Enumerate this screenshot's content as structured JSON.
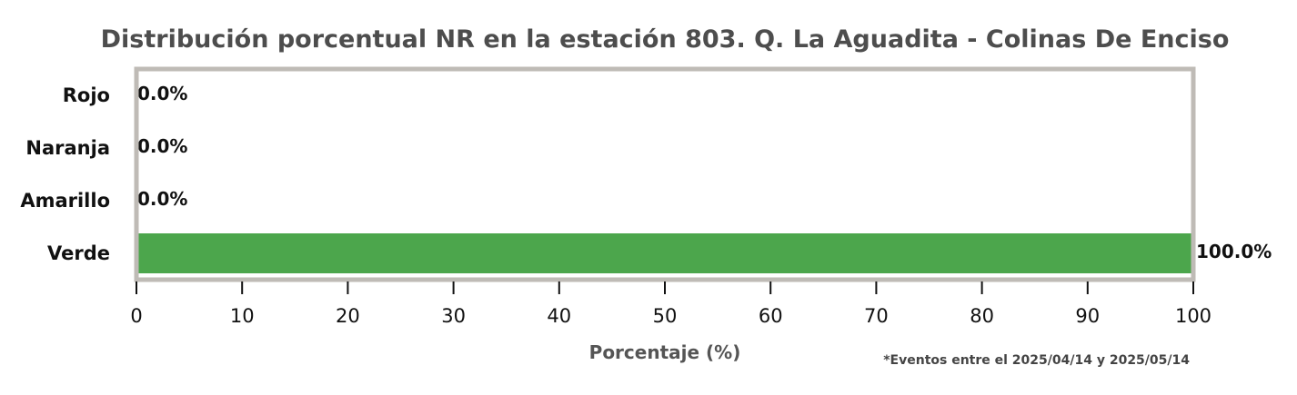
{
  "chart_data": {
    "type": "bar",
    "orientation": "horizontal",
    "title": "Distribución porcentual NR en la estación 803. Q. La Aguadita - Colinas De Enciso",
    "categories": [
      "Rojo",
      "Naranja",
      "Amarillo",
      "Verde"
    ],
    "values": [
      0.0,
      0.0,
      0.0,
      100.0
    ],
    "data_labels": [
      "0.0%",
      "0.0%",
      "0.0%",
      "100.0%"
    ],
    "bar_colors": [
      "#d62728",
      "#ff7f0e",
      "#ffd700",
      "#4ca64c"
    ],
    "xlabel": "Porcentaje (%)",
    "ylabel": "",
    "xlim": [
      0,
      100
    ],
    "xticks": [
      "0",
      "10",
      "20",
      "30",
      "40",
      "50",
      "60",
      "70",
      "80",
      "90",
      "100"
    ],
    "grid": false,
    "frame_color": "#bfbbb6",
    "footnote": "*Eventos entre el 2025/04/14 y 2025/05/14"
  }
}
